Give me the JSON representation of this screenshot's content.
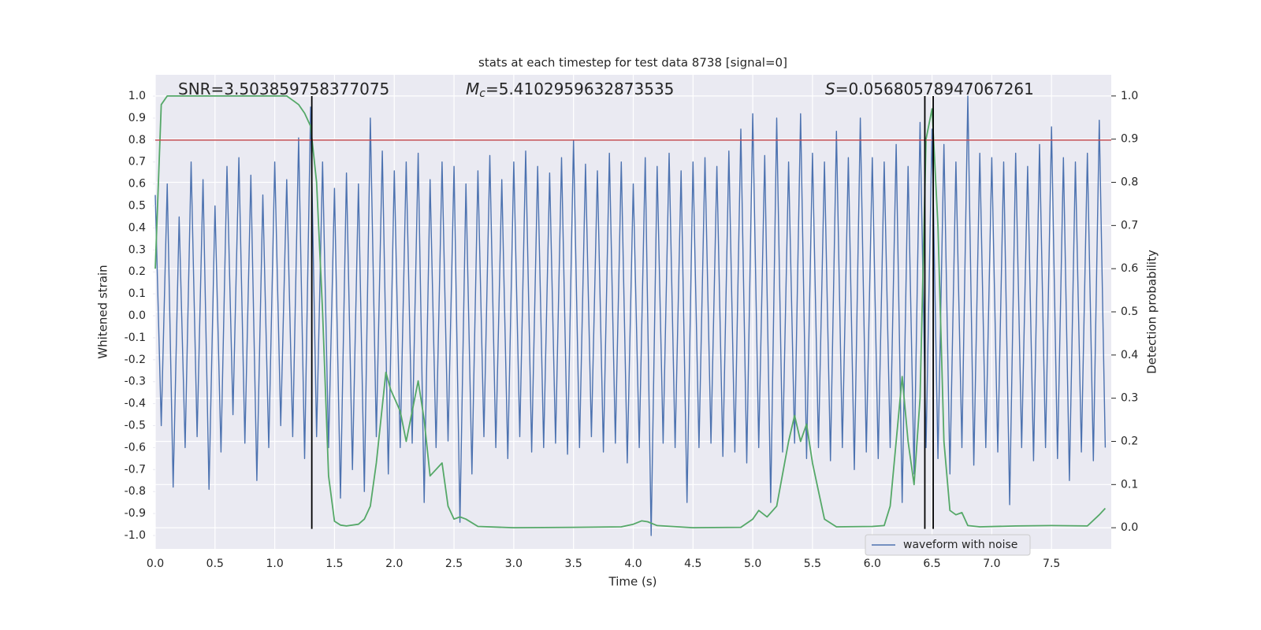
{
  "chart_data": {
    "type": "line",
    "title": "stats at each timestep for test data 8738 [signal=0]",
    "xlabel": "Time (s)",
    "ylabel": "Whitened strain",
    "y2label": "Detection probability",
    "xlim": [
      0,
      8.0
    ],
    "ylim": [
      -1.061,
      1.097
    ],
    "y2lim": [
      -0.049,
      1.049
    ],
    "xticks": [
      {
        "value": 0,
        "label": "0.0"
      },
      0.5,
      {
        "value": 1,
        "label": "1.0"
      },
      1.5,
      {
        "value": 2,
        "label": "2.0"
      },
      2.5,
      {
        "value": 3,
        "label": "3.0"
      },
      3.5,
      {
        "value": 4,
        "label": "4.0"
      },
      4.5,
      {
        "value": 5,
        "label": "5.0"
      },
      5.5,
      {
        "value": 6,
        "label": "6.0"
      },
      6.5,
      {
        "value": 7,
        "label": "7.0"
      },
      7.5
    ],
    "yticks": [
      {
        "value": 1,
        "label": "1.0"
      },
      0.9,
      0.8,
      0.7,
      0.6,
      0.5,
      0.4,
      0.3,
      0.2,
      0.1,
      {
        "value": 0,
        "label": "0.0"
      },
      {
        "value": -0.1,
        "label": "-0.1"
      },
      {
        "value": -0.2,
        "label": "-0.2"
      },
      {
        "value": -0.3,
        "label": "-0.3"
      },
      {
        "value": -0.4,
        "label": "-0.4"
      },
      {
        "value": -0.5,
        "label": "-0.5"
      },
      {
        "value": -0.6,
        "label": "-0.6"
      },
      {
        "value": -0.7,
        "label": "-0.7"
      },
      {
        "value": -0.8,
        "label": "-0.8"
      },
      {
        "value": -0.9,
        "label": "-0.9"
      },
      {
        "value": -1,
        "label": "-1.0"
      }
    ],
    "y2ticks": [
      {
        "value": 0,
        "label": "0.0"
      },
      0.1,
      0.2,
      0.3,
      0.4,
      0.5,
      0.6,
      0.7,
      0.8,
      0.9,
      {
        "value": 1,
        "label": "1.0"
      }
    ],
    "grid": true,
    "legend": "lower right",
    "series": [
      {
        "name": "waveform with noise",
        "color": "#4c72b0",
        "x": [
          0,
          0.05,
          0.1,
          0.15,
          0.2,
          0.25,
          0.3,
          0.35,
          0.4,
          0.45,
          0.5,
          0.55,
          0.6,
          0.65,
          0.7,
          0.75,
          0.8,
          0.85,
          0.9,
          0.95,
          1,
          1.05,
          1.1,
          1.15,
          1.2,
          1.25,
          1.3,
          1.35,
          1.4,
          1.45,
          1.5,
          1.55,
          1.6,
          1.65,
          1.7,
          1.75,
          1.8,
          1.85,
          1.9,
          1.95,
          2,
          2.05,
          2.1,
          2.15,
          2.2,
          2.25,
          2.3,
          2.35,
          2.4,
          2.45,
          2.5,
          2.55,
          2.6,
          2.65,
          2.7,
          2.75,
          2.8,
          2.85,
          2.9,
          2.95,
          3,
          3.05,
          3.1,
          3.15,
          3.2,
          3.25,
          3.3,
          3.35,
          3.4,
          3.45,
          3.5,
          3.55,
          3.6,
          3.65,
          3.7,
          3.75,
          3.8,
          3.85,
          3.9,
          3.95,
          4,
          4.05,
          4.1,
          4.15,
          4.2,
          4.25,
          4.3,
          4.35,
          4.4,
          4.45,
          4.5,
          4.55,
          4.6,
          4.65,
          4.7,
          4.75,
          4.8,
          4.85,
          4.9,
          4.95,
          5,
          5.05,
          5.1,
          5.15,
          5.2,
          5.25,
          5.3,
          5.35,
          5.4,
          5.45,
          5.5,
          5.55,
          5.6,
          5.65,
          5.7,
          5.75,
          5.8,
          5.85,
          5.9,
          5.95,
          6,
          6.05,
          6.1,
          6.15,
          6.2,
          6.25,
          6.3,
          6.35,
          6.4,
          6.45,
          6.5,
          6.55,
          6.6,
          6.65,
          6.7,
          6.75,
          6.8,
          6.85,
          6.9,
          6.95,
          7,
          7.05,
          7.1,
          7.15,
          7.2,
          7.25,
          7.3,
          7.35,
          7.4,
          7.45,
          7.5,
          7.55,
          7.6,
          7.65,
          7.7,
          7.75,
          7.8,
          7.85,
          7.9,
          7.95
        ],
        "values": [
          0.55,
          -0.5,
          0.6,
          -0.78,
          0.45,
          -0.6,
          0.7,
          -0.55,
          0.62,
          -0.79,
          0.5,
          -0.62,
          0.68,
          -0.45,
          0.72,
          -0.58,
          0.64,
          -0.75,
          0.55,
          -0.6,
          0.7,
          -0.5,
          0.62,
          -0.55,
          0.81,
          -0.65,
          0.95,
          -0.55,
          0.7,
          -0.6,
          0.58,
          -0.83,
          0.65,
          -0.7,
          0.6,
          -0.8,
          0.9,
          -0.55,
          0.75,
          -0.72,
          0.66,
          -0.6,
          0.7,
          -0.58,
          0.74,
          -0.85,
          0.62,
          -0.6,
          0.7,
          -0.57,
          0.68,
          -0.94,
          0.6,
          -0.72,
          0.66,
          -0.55,
          0.73,
          -0.6,
          0.62,
          -0.65,
          0.7,
          -0.55,
          0.75,
          -0.62,
          0.68,
          -0.6,
          0.65,
          -0.58,
          0.72,
          -0.63,
          0.8,
          -0.6,
          0.69,
          -0.55,
          0.66,
          -0.62,
          0.74,
          -0.58,
          0.7,
          -0.67,
          0.6,
          -0.6,
          0.72,
          -1.0,
          0.68,
          -0.58,
          0.74,
          -0.6,
          0.66,
          -0.85,
          0.7,
          -0.6,
          0.72,
          -0.58,
          0.68,
          -0.64,
          0.75,
          -0.62,
          0.85,
          -0.67,
          0.92,
          -0.6,
          0.73,
          -0.85,
          0.9,
          -0.62,
          0.7,
          -0.58,
          0.92,
          -0.65,
          0.74,
          -0.6,
          0.7,
          -0.66,
          0.84,
          -0.6,
          0.72,
          -0.7,
          0.9,
          -0.62,
          0.72,
          -0.65,
          0.7,
          -0.6,
          0.78,
          -0.85,
          0.68,
          -0.72,
          0.88,
          -0.6,
          0.85,
          -0.65,
          0.78,
          -0.72,
          0.7,
          -0.6,
          1.0,
          -0.68,
          0.74,
          -0.6,
          0.72,
          -0.62,
          0.7,
          -0.86,
          0.74,
          -0.6,
          0.68,
          -0.66,
          0.78,
          -0.6,
          0.86,
          -0.65,
          0.72,
          -0.75,
          0.7,
          -0.62,
          0.74,
          -0.66,
          0.89,
          -0.6
        ]
      },
      {
        "color": "#55a868",
        "axis": "y2",
        "x": [
          0,
          0.05,
          0.1,
          0.3,
          0.6,
          0.9,
          1.1,
          1.15,
          1.2,
          1.25,
          1.3,
          1.35,
          1.4,
          1.45,
          1.5,
          1.55,
          1.6,
          1.7,
          1.75,
          1.8,
          1.85,
          1.93,
          1.97,
          2.05,
          2.1,
          2.2,
          2.25,
          2.3,
          2.4,
          2.45,
          2.5,
          2.55,
          2.6,
          2.7,
          3.0,
          3.5,
          3.9,
          4.0,
          4.07,
          4.12,
          4.2,
          4.5,
          4.9,
          5.0,
          5.05,
          5.12,
          5.2,
          5.3,
          5.35,
          5.4,
          5.45,
          5.5,
          5.6,
          5.7,
          6.0,
          6.1,
          6.15,
          6.25,
          6.3,
          6.35,
          6.4,
          6.45,
          6.5,
          6.55,
          6.6,
          6.65,
          6.7,
          6.75,
          6.8,
          6.9,
          7.2,
          7.5,
          7.8,
          7.9,
          7.95
        ],
        "values": [
          0.6,
          0.98,
          1.0,
          1.0,
          1.0,
          1.0,
          1.0,
          0.99,
          0.98,
          0.96,
          0.93,
          0.8,
          0.5,
          0.12,
          0.015,
          0.006,
          0.004,
          0.008,
          0.02,
          0.05,
          0.15,
          0.36,
          0.32,
          0.27,
          0.2,
          0.34,
          0.25,
          0.12,
          0.15,
          0.05,
          0.02,
          0.025,
          0.02,
          0.003,
          0.0,
          0.001,
          0.002,
          0.008,
          0.016,
          0.014,
          0.005,
          0.0,
          0.001,
          0.02,
          0.04,
          0.025,
          0.05,
          0.2,
          0.26,
          0.2,
          0.24,
          0.15,
          0.02,
          0.002,
          0.003,
          0.005,
          0.05,
          0.35,
          0.2,
          0.1,
          0.3,
          0.9,
          0.97,
          0.7,
          0.2,
          0.04,
          0.03,
          0.035,
          0.005,
          0.002,
          0.004,
          0.005,
          0.004,
          0.03,
          0.045
        ]
      }
    ],
    "hlines": [
      {
        "y": 0.8,
        "color": "#c44e52"
      }
    ],
    "vlines": [
      {
        "x": 1.31,
        "ymin": -0.97,
        "ymax": 1.0,
        "color": "#000000"
      },
      {
        "x": 6.44,
        "ymin": -0.97,
        "ymax": 1.0,
        "color": "#000000"
      },
      {
        "x": 6.51,
        "ymin": -0.97,
        "ymax": 1.0,
        "color": "#000000"
      }
    ],
    "annotations": [
      {
        "text": "SNR=3.503859758377075"
      },
      {
        "symbol": "M",
        "subscript": "c",
        "text": "=5.4102959632873535"
      },
      {
        "symbol": "S",
        "text": "=0.05680578947067261"
      }
    ]
  }
}
